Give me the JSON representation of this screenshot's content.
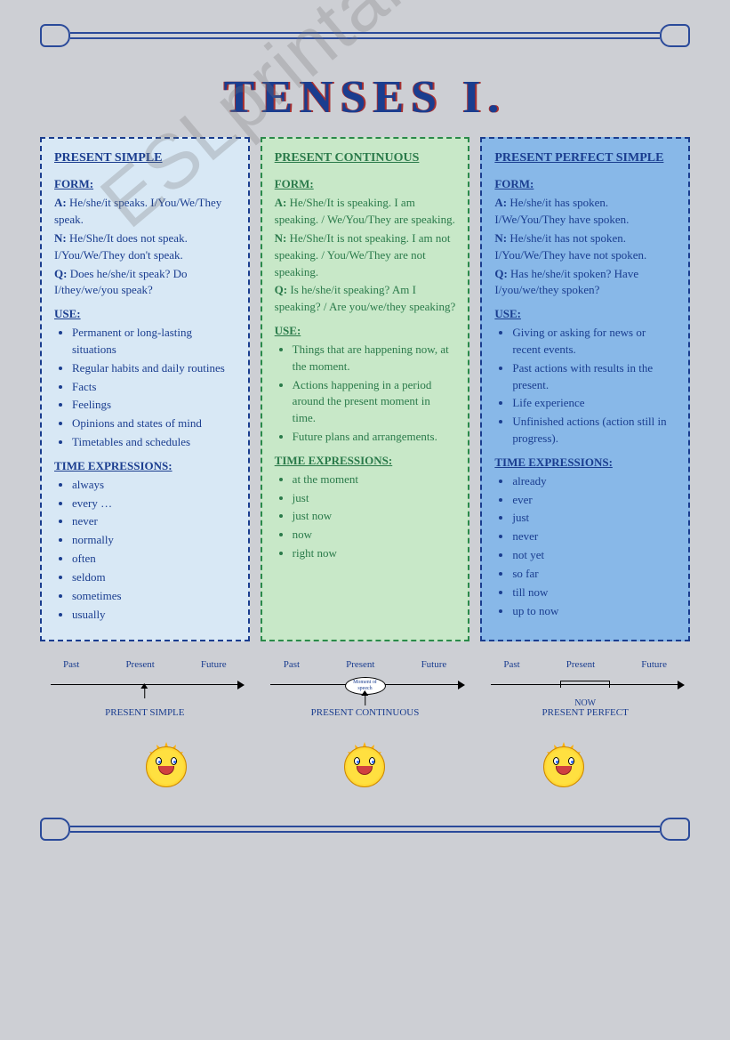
{
  "title": "TENSES I.",
  "watermark": "ESLprintables.com",
  "columns": [
    {
      "heading": "PRESENT SIMPLE",
      "form_label": "FORM:",
      "form": [
        {
          "l": "A:",
          "t": "He/she/it speaks. I/You/We/They speak."
        },
        {
          "l": "N:",
          "t": "He/She/It does not speak. I/You/We/They don't speak."
        },
        {
          "l": "Q:",
          "t": "Does he/she/it speak? Do I/they/we/you speak?"
        }
      ],
      "use_label": "USE:",
      "use": [
        "Permanent or long-lasting situations",
        "Regular habits and daily routines",
        "Facts",
        "Feelings",
        "Opinions and states of mind",
        "Timetables and schedules"
      ],
      "te_label": "TIME EXPRESSIONS:",
      "te": [
        "always",
        "every …",
        "never",
        "normally",
        "often",
        "seldom",
        "sometimes",
        "usually"
      ]
    },
    {
      "heading": "PRESENT CONTINUOUS",
      "form_label": "FORM:",
      "form": [
        {
          "l": "A:",
          "t": "He/She/It is speaking. I am speaking. / We/You/They are speaking."
        },
        {
          "l": "N:",
          "t": "He/She/It is not speaking. I am not speaking. / You/We/They are not speaking."
        },
        {
          "l": "Q:",
          "t": "Is he/she/it speaking? Am I speaking? / Are you/we/they speaking?"
        }
      ],
      "use_label": "USE:",
      "use": [
        "Things that are happening now, at the moment.",
        "Actions happening in a period around the present moment in time.",
        "Future plans and arrangements."
      ],
      "te_label": "TIME EXPRESSIONS:",
      "te": [
        "at the moment",
        "just",
        "just now",
        "now",
        "right now"
      ]
    },
    {
      "heading": "PRESENT PERFECT SIMPLE",
      "form_label": "FORM:",
      "form": [
        {
          "l": "A:",
          "t": "He/she/it has spoken. I/We/You/They have spoken."
        },
        {
          "l": "N:",
          "t": "He/she/it has not spoken. I/You/We/They have not spoken."
        },
        {
          "l": "Q:",
          "t": "Has he/she/it spoken? Have I/you/we/they spoken?"
        }
      ],
      "use_label": "USE:",
      "use": [
        "Giving or asking for news or recent events.",
        "Past actions with results in the present.",
        "Life experience",
        "Unfinished actions (action still in progress)."
      ],
      "te_label": "TIME EXPRESSIONS:",
      "te": [
        "already",
        "ever",
        "just",
        "never",
        "not yet",
        "so far",
        "till now",
        "up to now"
      ]
    }
  ],
  "timeline_labels": [
    "Past",
    "Present",
    "Future"
  ],
  "timelines": [
    {
      "type": "arrow",
      "caption": "PRESENT SIMPLE"
    },
    {
      "type": "oval",
      "oval_text": "Moment of speech",
      "caption": "PRESENT CONTINUOUS"
    },
    {
      "type": "bracket",
      "now": "NOW",
      "caption": "PRESENT PERFECT"
    }
  ],
  "colors": {
    "page_bg": "#cdcfd4",
    "text_blue": "#1a3d8f",
    "text_green": "#2a7a4a",
    "col1_bg": "#d8e8f5",
    "col1_border": "#1a3d8f",
    "col2_bg": "#c8e8c8",
    "col2_border": "#2a8a4a",
    "col3_bg": "#88b8e8",
    "col3_border": "#1a3d8f"
  }
}
